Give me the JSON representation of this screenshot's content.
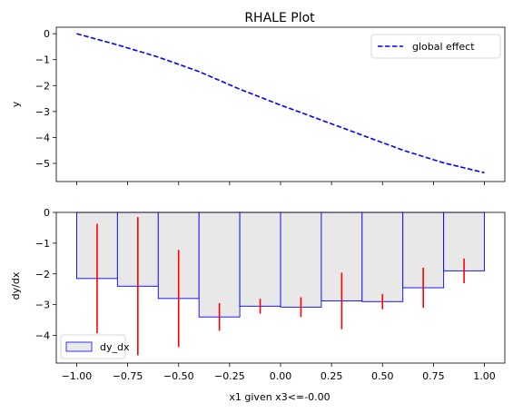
{
  "chart_data": [
    {
      "type": "line",
      "title": "RHALE Plot",
      "xlabel": "",
      "ylabel": "y",
      "xlim": [
        -1.1,
        1.1
      ],
      "ylim": [
        -5.7,
        0.25
      ],
      "xticks": [
        -1.0,
        -0.75,
        -0.5,
        -0.25,
        0.0,
        0.25,
        0.5,
        0.75,
        1.0
      ],
      "yticks": [
        0,
        -1,
        -2,
        -3,
        -4,
        -5
      ],
      "ytick_labels": [
        "0",
        "−1",
        "−2",
        "−3",
        "−4",
        "−5"
      ],
      "grid": false,
      "legend": "upper right",
      "series": [
        {
          "name": "global effect",
          "color": "#0000ff",
          "style": "dashed",
          "x": [
            -1.0,
            -0.8,
            -0.6,
            -0.4,
            -0.2,
            0.0,
            0.2,
            0.4,
            0.6,
            0.8,
            1.0
          ],
          "y": [
            0.0,
            -0.43,
            -0.9,
            -1.46,
            -2.14,
            -2.75,
            -3.33,
            -3.91,
            -4.49,
            -4.98,
            -5.36
          ]
        }
      ]
    },
    {
      "type": "bar",
      "title": "",
      "xlabel": "x1 given x3<=-0.00",
      "ylabel": "dy/dx",
      "xlim": [
        -1.1,
        1.1
      ],
      "ylim": [
        -4.9,
        0.0
      ],
      "xticks": [
        -1.0,
        -0.75,
        -0.5,
        -0.25,
        0.0,
        0.25,
        0.5,
        0.75,
        1.0
      ],
      "xtick_labels": [
        "−1.00",
        "−0.75",
        "−0.50",
        "−0.25",
        "0.00",
        "0.25",
        "0.50",
        "0.75",
        "1.00"
      ],
      "yticks": [
        0,
        -1,
        -2,
        -3,
        -4
      ],
      "ytick_labels": [
        "0",
        "−1",
        "−2",
        "−3",
        "−4"
      ],
      "grid": false,
      "legend": "lower left",
      "bar_width": 0.2,
      "bar_fill": "#e8e8e8",
      "bar_edge": "#0000ff",
      "errorbar_color": "#ff0000",
      "series": [
        {
          "name": "dy_dx",
          "bin_centers": [
            -0.9,
            -0.7,
            -0.5,
            -0.3,
            -0.1,
            0.1,
            0.3,
            0.5,
            0.7,
            0.9
          ],
          "values": [
            -2.15,
            -2.4,
            -2.8,
            -3.4,
            -3.05,
            -3.08,
            -2.88,
            -2.9,
            -2.45,
            -1.9
          ],
          "errors": [
            1.78,
            2.25,
            1.58,
            0.45,
            0.24,
            0.32,
            0.92,
            0.25,
            0.65,
            0.4
          ]
        }
      ]
    }
  ]
}
